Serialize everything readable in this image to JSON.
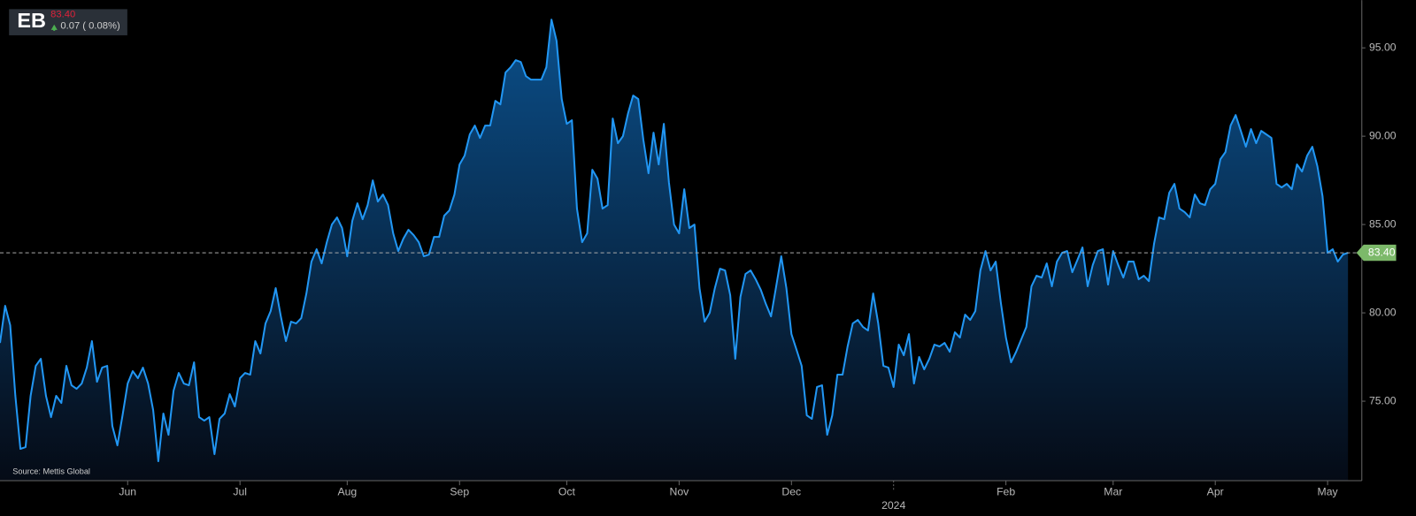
{
  "header": {
    "ticker": "EB",
    "price": "83.40",
    "change": "0.07 ( 0.08%)"
  },
  "chart_data": {
    "type": "area",
    "source": "Source: Mettis Global",
    "color": "#2196f3",
    "values": [
      78.3,
      80.4,
      79.3,
      75.3,
      72.3,
      72.4,
      75.3,
      77.0,
      77.4,
      75.3,
      74.1,
      75.3,
      74.9,
      77.0,
      75.9,
      75.7,
      76.0,
      76.9,
      78.4,
      76.1,
      76.9,
      77.0,
      73.6,
      72.5,
      74.2,
      76.0,
      76.7,
      76.3,
      76.9,
      76.0,
      74.5,
      71.6,
      74.3,
      73.1,
      75.6,
      76.6,
      76.0,
      75.9,
      77.2,
      74.1,
      73.9,
      74.1,
      72.0,
      74.0,
      74.3,
      75.4,
      74.7,
      76.3,
      76.6,
      76.5,
      78.4,
      77.7,
      79.4,
      80.1,
      81.4,
      79.8,
      78.4,
      79.5,
      79.4,
      79.7,
      81.1,
      82.9,
      83.6,
      82.8,
      84.0,
      85.0,
      85.4,
      84.8,
      83.2,
      85.2,
      86.2,
      85.3,
      86.1,
      87.5,
      86.3,
      86.7,
      86.1,
      84.5,
      83.5,
      84.2,
      84.7,
      84.4,
      84.0,
      83.2,
      83.3,
      84.3,
      84.3,
      85.5,
      85.8,
      86.7,
      88.4,
      88.9,
      90.1,
      90.6,
      89.9,
      90.6,
      90.6,
      92.0,
      91.8,
      93.6,
      93.9,
      94.3,
      94.2,
      93.4,
      93.2,
      93.2,
      93.2,
      93.9,
      96.6,
      95.4,
      92.1,
      90.7,
      90.9,
      85.9,
      84.0,
      84.5,
      88.1,
      87.6,
      85.9,
      86.1,
      91.0,
      89.6,
      90.0,
      91.3,
      92.3,
      92.1,
      89.8,
      87.9,
      90.2,
      88.4,
      90.7,
      87.4,
      85.0,
      84.5,
      87.0,
      84.8,
      85.0,
      81.4,
      79.5,
      80.0,
      81.4,
      82.5,
      82.4,
      81.0,
      77.4,
      80.9,
      82.2,
      82.4,
      81.9,
      81.3,
      80.5,
      79.8,
      81.5,
      83.2,
      81.4,
      78.8,
      77.9,
      77.0,
      74.2,
      74.0,
      75.8,
      75.9,
      73.1,
      74.2,
      76.5,
      76.5,
      78.1,
      79.4,
      79.6,
      79.2,
      79.0,
      81.1,
      79.4,
      77.0,
      76.9,
      75.8,
      78.2,
      77.6,
      78.8,
      76.0,
      77.5,
      76.8,
      77.4,
      78.2,
      78.1,
      78.3,
      77.8,
      78.9,
      78.6,
      79.9,
      79.6,
      80.1,
      82.4,
      83.5,
      82.4,
      82.9,
      80.6,
      78.6,
      77.2,
      77.8,
      78.5,
      79.2,
      81.5,
      82.1,
      82.0,
      82.8,
      81.5,
      82.9,
      83.4,
      83.5,
      82.3,
      83.0,
      83.7,
      81.5,
      82.7,
      83.5,
      83.6,
      81.6,
      83.5,
      82.7,
      82.0,
      82.9,
      82.9,
      81.9,
      82.1,
      81.8,
      83.9,
      85.4,
      85.3,
      86.8,
      87.3,
      85.9,
      85.7,
      85.4,
      86.7,
      86.2,
      86.1,
      87.0,
      87.3,
      88.7,
      89.1,
      90.6,
      91.2,
      90.3,
      89.4,
      90.4,
      89.6,
      90.3,
      90.1,
      89.9,
      87.3,
      87.1,
      87.3,
      87.0,
      88.4,
      88.0,
      88.9,
      89.4,
      88.3,
      86.6,
      83.4,
      83.6,
      82.9,
      83.3,
      83.4
    ],
    "last_value": {
      "value": 83.4,
      "label": "83.40"
    },
    "xlim": [
      0,
      266.7
    ],
    "xticks": [
      {
        "value": 25,
        "label": "Jun"
      },
      {
        "value": 47,
        "label": "Jul"
      },
      {
        "value": 68,
        "label": "Aug"
      },
      {
        "value": 90,
        "label": "Sep"
      },
      {
        "value": 111,
        "label": "Oct"
      },
      {
        "value": 133,
        "label": "Nov"
      },
      {
        "value": 155,
        "label": "Dec"
      },
      {
        "value": 175,
        "label": "2024"
      },
      {
        "value": 197,
        "label": "Feb"
      },
      {
        "value": 218,
        "label": "Mar"
      },
      {
        "value": 238,
        "label": "Apr"
      },
      {
        "value": 260,
        "label": "May"
      }
    ],
    "ylim": [
      70.5,
      97.7
    ],
    "yticks": [
      {
        "value": 75,
        "label": "75.00"
      },
      {
        "value": 80,
        "label": "80.00"
      },
      {
        "value": 85,
        "label": "85.00"
      },
      {
        "value": 90,
        "label": "90.00"
      },
      {
        "value": 95,
        "label": "95.00"
      }
    ],
    "grid": false
  }
}
